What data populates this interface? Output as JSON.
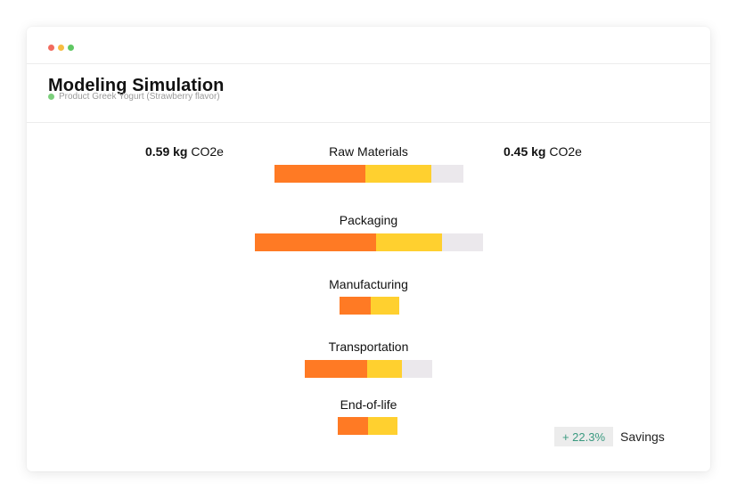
{
  "window": {
    "controls": [
      "close",
      "minimize",
      "maximize"
    ],
    "colors": {
      "close": "#f26b5e",
      "minimize": "#f7bc41",
      "maximize": "#5fc763"
    }
  },
  "header": {
    "title": "Modeling Simulation",
    "subtitle": "Product Greek Yogurt (Strawberry flavor)",
    "status_color": "#7ccf7c"
  },
  "totals": {
    "left": {
      "value": "0.59 kg",
      "unit": "CO2e"
    },
    "right": {
      "value": "0.45 kg",
      "unit": "CO2e"
    }
  },
  "colors": {
    "orange": "#ff7a24",
    "yellow": "#ffd02f",
    "gray": "#ebe8ec"
  },
  "categories": [
    {
      "label": "Raw Materials",
      "segments": [
        0.48,
        0.35,
        0.17
      ]
    },
    {
      "label": "Packaging",
      "segments": [
        0.53,
        0.29,
        0.18
      ]
    },
    {
      "label": "Manufacturing",
      "segments": [
        0.52,
        0.48,
        0
      ]
    },
    {
      "label": "Transportation",
      "segments": [
        0.49,
        0.27,
        0.24
      ]
    },
    {
      "label": "End-of-life",
      "segments": [
        0.51,
        0.49,
        0
      ]
    }
  ],
  "savings": {
    "value": "+ 22.3%",
    "label": "Savings"
  }
}
